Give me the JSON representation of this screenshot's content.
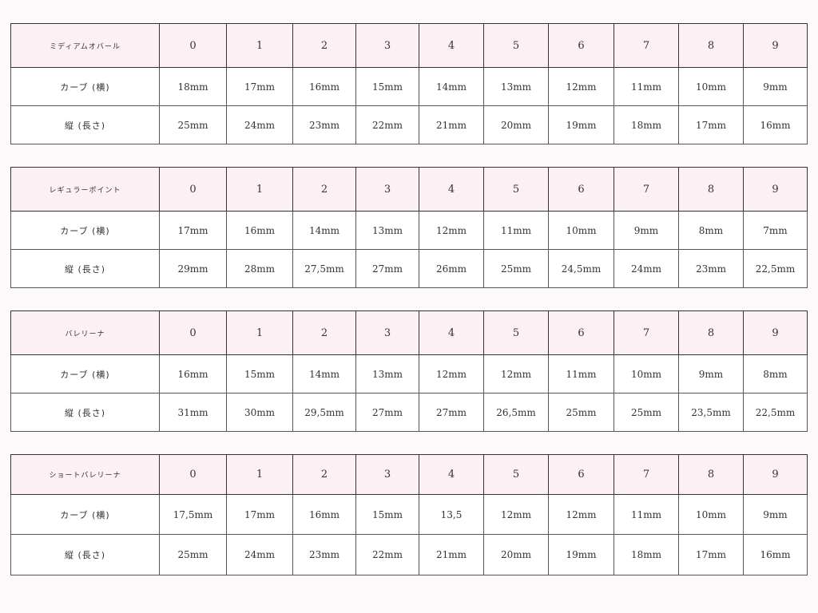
{
  "row_labels": {
    "curve": "カーブ (横)",
    "length": "縦 (長さ)"
  },
  "tables": [
    {
      "name": "ミディアムオバール",
      "sizes": [
        "0",
        "1",
        "2",
        "3",
        "4",
        "5",
        "6",
        "7",
        "8",
        "9"
      ],
      "curve": [
        "18mm",
        "17mm",
        "16mm",
        "15mm",
        "14mm",
        "13mm",
        "12mm",
        "11mm",
        "10mm",
        "9mm"
      ],
      "length": [
        "25mm",
        "24mm",
        "23mm",
        "22mm",
        "21mm",
        "20mm",
        "19mm",
        "18mm",
        "17mm",
        "16mm"
      ]
    },
    {
      "name": "レギュラーポイント",
      "sizes": [
        "0",
        "1",
        "2",
        "3",
        "4",
        "5",
        "6",
        "7",
        "8",
        "9"
      ],
      "curve": [
        "17mm",
        "16mm",
        "14mm",
        "13mm",
        "12mm",
        "11mm",
        "10mm",
        "9mm",
        "8mm",
        "7mm"
      ],
      "length": [
        "29mm",
        "28mm",
        "27,5mm",
        "27mm",
        "26mm",
        "25mm",
        "24,5mm",
        "24mm",
        "23mm",
        "22,5mm"
      ]
    },
    {
      "name": "バレリーナ",
      "sizes": [
        "0",
        "1",
        "2",
        "3",
        "4",
        "5",
        "6",
        "7",
        "8",
        "9"
      ],
      "curve": [
        "16mm",
        "15mm",
        "14mm",
        "13mm",
        "12mm",
        "12mm",
        "11mm",
        "10mm",
        "9mm",
        "8mm"
      ],
      "length": [
        "31mm",
        "30mm",
        "29,5mm",
        "27mm",
        "27mm",
        "26,5mm",
        "25mm",
        "25mm",
        "23,5mm",
        "22,5mm"
      ]
    },
    {
      "name": "ショートバレリーナ",
      "sizes": [
        "0",
        "1",
        "2",
        "3",
        "4",
        "5",
        "6",
        "7",
        "8",
        "9"
      ],
      "curve": [
        "17,5mm",
        "17mm",
        "16mm",
        "15mm",
        "13,5",
        "12mm",
        "12mm",
        "11mm",
        "10mm",
        "9mm"
      ],
      "length": [
        "25mm",
        "24mm",
        "23mm",
        "22mm",
        "21mm",
        "20mm",
        "19mm",
        "18mm",
        "17mm",
        "16mm"
      ]
    }
  ]
}
